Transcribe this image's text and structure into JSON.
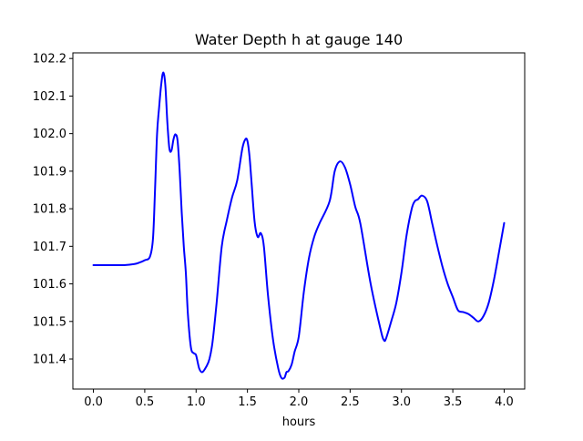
{
  "chart_data": {
    "type": "line",
    "title": "Water Depth h at gauge 140",
    "xlabel": "hours",
    "ylabel": "",
    "xlim": [
      -0.2,
      4.2
    ],
    "ylim": [
      101.32,
      102.215
    ],
    "x_ticks": [
      0.0,
      0.5,
      1.0,
      1.5,
      2.0,
      2.5,
      3.0,
      3.5,
      4.0
    ],
    "x_tick_labels": [
      "0.0",
      "0.5",
      "1.0",
      "1.5",
      "2.0",
      "2.5",
      "3.0",
      "3.5",
      "4.0"
    ],
    "y_ticks": [
      101.4,
      101.5,
      101.6,
      101.7,
      101.8,
      101.9,
      102.0,
      102.1,
      102.2
    ],
    "y_tick_labels": [
      "101.4",
      "101.5",
      "101.6",
      "101.7",
      "101.8",
      "101.9",
      "102.0",
      "102.1",
      "102.2"
    ],
    "grid": false,
    "series": [
      {
        "color": "#0000ff",
        "x": [
          0.0,
          0.1,
          0.2,
          0.3,
          0.4,
          0.45,
          0.5,
          0.55,
          0.58,
          0.6,
          0.62,
          0.64,
          0.66,
          0.68,
          0.7,
          0.72,
          0.74,
          0.76,
          0.78,
          0.8,
          0.82,
          0.84,
          0.86,
          0.88,
          0.9,
          0.92,
          0.95,
          0.98,
          1.0,
          1.03,
          1.06,
          1.1,
          1.13,
          1.16,
          1.2,
          1.25,
          1.3,
          1.35,
          1.4,
          1.45,
          1.48,
          1.5,
          1.52,
          1.54,
          1.57,
          1.6,
          1.63,
          1.66,
          1.7,
          1.75,
          1.8,
          1.83,
          1.86,
          1.88,
          1.9,
          1.93,
          1.96,
          2.0,
          2.05,
          2.1,
          2.15,
          2.2,
          2.3,
          2.35,
          2.4,
          2.45,
          2.5,
          2.55,
          2.6,
          2.7,
          2.8,
          2.83,
          2.85,
          2.9,
          2.95,
          3.0,
          3.05,
          3.1,
          3.13,
          3.16,
          3.2,
          3.25,
          3.3,
          3.35,
          3.4,
          3.45,
          3.5,
          3.55,
          3.6,
          3.65,
          3.7,
          3.75,
          3.8,
          3.85,
          3.9,
          3.95,
          4.0
        ],
        "y": [
          101.65,
          101.65,
          101.65,
          101.65,
          101.653,
          101.657,
          101.663,
          101.672,
          101.72,
          101.85,
          102.0,
          102.07,
          102.13,
          102.163,
          102.13,
          102.03,
          101.96,
          101.955,
          101.985,
          101.998,
          101.98,
          101.9,
          101.79,
          101.7,
          101.63,
          101.52,
          101.43,
          101.415,
          101.41,
          101.375,
          101.365,
          101.38,
          101.4,
          101.445,
          101.55,
          101.7,
          101.77,
          101.83,
          101.875,
          101.96,
          101.985,
          101.98,
          101.94,
          101.87,
          101.765,
          101.725,
          101.735,
          101.7,
          101.57,
          101.45,
          101.375,
          101.35,
          101.35,
          101.365,
          101.368,
          101.385,
          101.42,
          101.46,
          101.58,
          101.67,
          101.725,
          101.76,
          101.82,
          101.9,
          101.926,
          101.91,
          101.865,
          101.805,
          101.76,
          101.6,
          101.475,
          101.45,
          101.455,
          101.5,
          101.55,
          101.63,
          101.73,
          101.8,
          101.82,
          101.825,
          101.835,
          101.82,
          101.76,
          101.7,
          101.645,
          101.6,
          101.565,
          101.53,
          101.525,
          101.52,
          101.51,
          101.5,
          101.515,
          101.55,
          101.61,
          101.685,
          101.762
        ]
      }
    ]
  }
}
